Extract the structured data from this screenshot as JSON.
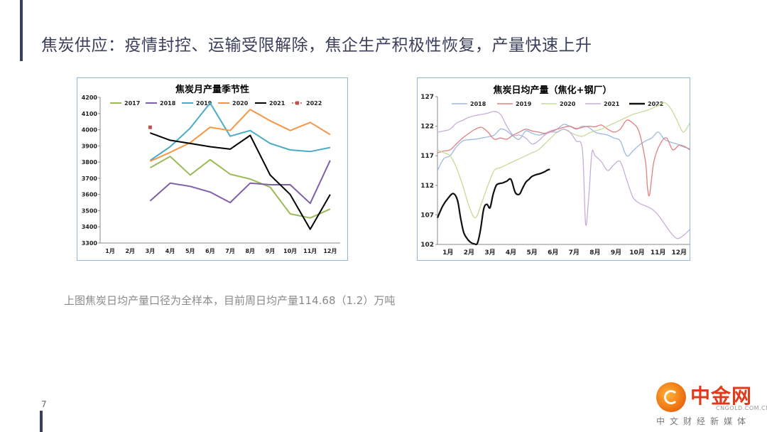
{
  "title": "焦炭供应：疫情封控、运输受限解除，焦企生产积极性恢复，产量快速上升",
  "caption": "上图焦炭日均产量口径为全样本，目前周日均产量114.68（1.2）万吨",
  "page_number": "7",
  "logo": {
    "brand": "中金网",
    "domain": "CNGOLD.COM.CN",
    "tagline": "中文财经新媒体"
  },
  "chart_data": [
    {
      "type": "line",
      "title": "焦炭月产量季节性",
      "categories": [
        "1月",
        "2月",
        "3月",
        "4月",
        "5月",
        "6月",
        "7月",
        "8月",
        "9月",
        "10月",
        "11月",
        "12月"
      ],
      "ylim": [
        3300,
        4200
      ],
      "yticks": [
        3300,
        3400,
        3500,
        3600,
        3700,
        3800,
        3900,
        4000,
        4100,
        4200
      ],
      "grid": false,
      "legend_position": "top",
      "series": [
        {
          "name": "2017",
          "color": "#9bbb59",
          "marker": "none",
          "values": [
            null,
            null,
            3765,
            3835,
            3720,
            3815,
            3725,
            3695,
            3645,
            3480,
            3455,
            3510
          ]
        },
        {
          "name": "2018",
          "color": "#7f5fa8",
          "marker": "none",
          "values": [
            null,
            null,
            3560,
            3670,
            3650,
            3615,
            3550,
            3670,
            3660,
            3660,
            3545,
            3810
          ]
        },
        {
          "name": "2019",
          "color": "#4bacc6",
          "marker": "none",
          "values": [
            null,
            null,
            3810,
            3895,
            4010,
            4165,
            3960,
            3995,
            3915,
            3875,
            3865,
            3890
          ]
        },
        {
          "name": "2020",
          "color": "#f79646",
          "marker": "none",
          "values": [
            null,
            null,
            3805,
            3860,
            3920,
            4015,
            3995,
            4125,
            4055,
            3995,
            4045,
            3970
          ]
        },
        {
          "name": "2021",
          "color": "#000000",
          "marker": "none",
          "values": [
            null,
            null,
            3980,
            3935,
            3915,
            3895,
            3880,
            3965,
            3720,
            3600,
            3385,
            3600
          ]
        },
        {
          "name": "2022",
          "color": "#c0504d",
          "marker": "square",
          "values": [
            null,
            null,
            4015,
            null,
            null,
            null,
            null,
            null,
            null,
            null,
            null,
            null
          ]
        }
      ]
    },
    {
      "type": "line",
      "title": "焦炭日均产量（焦化+钢厂）",
      "x_ticklabels": [
        "1月",
        "2月",
        "3月",
        "4月",
        "5月",
        "6月",
        "7月",
        "8月",
        "9月",
        "10月",
        "11月",
        "12月"
      ],
      "ylim": [
        102,
        127
      ],
      "yticks": [
        102,
        107,
        112,
        117,
        122,
        127
      ],
      "grid": false,
      "legend_position": "top",
      "series": [
        {
          "name": "2018",
          "color": "#9db9e0",
          "width": 1.3,
          "x": [
            0.0,
            0.3,
            0.6,
            0.9,
            1.2,
            1.5,
            1.8,
            2.1,
            2.4,
            2.7,
            3.0,
            3.3,
            3.6,
            3.9,
            4.2,
            4.5,
            4.8,
            5.1,
            5.4,
            5.7,
            6.0,
            6.3,
            6.6,
            6.9,
            7.2,
            7.5,
            7.8,
            8.1,
            8.4,
            8.7,
            9.0,
            9.3,
            9.6,
            9.9,
            10.2,
            10.5,
            10.8,
            11.1,
            11.4,
            11.7,
            12.0
          ],
          "y": [
            114.5,
            116.5,
            117.0,
            118.5,
            119.5,
            119.7,
            119.8,
            120.0,
            120.2,
            120.5,
            121.5,
            121.2,
            120.3,
            119.8,
            121.2,
            120.8,
            120.5,
            120.7,
            121.0,
            121.5,
            122.3,
            122.0,
            121.5,
            122.0,
            121.8,
            121.0,
            120.7,
            120.5,
            120.0,
            119.5,
            117.0,
            117.8,
            118.8,
            119.5,
            120.0,
            121.0,
            119.8,
            119.3,
            119.0,
            118.5,
            118.2
          ]
        },
        {
          "name": "2019",
          "color": "#e08080",
          "width": 1.3,
          "x": [
            0.0,
            0.3,
            0.6,
            0.9,
            1.2,
            1.5,
            1.8,
            2.1,
            2.4,
            2.7,
            3.0,
            3.3,
            3.6,
            3.9,
            4.2,
            4.5,
            4.8,
            5.1,
            5.4,
            5.7,
            6.0,
            6.3,
            6.6,
            6.9,
            7.2,
            7.5,
            7.8,
            8.1,
            8.4,
            8.7,
            9.0,
            9.3,
            9.6,
            9.9,
            10.0,
            10.1,
            10.3,
            10.6,
            10.9,
            11.2,
            11.5,
            11.8,
            12.0
          ],
          "y": [
            117.5,
            117.8,
            118.0,
            119.0,
            120.0,
            120.8,
            121.5,
            121.8,
            121.0,
            119.8,
            120.0,
            119.8,
            120.5,
            121.0,
            121.5,
            121.2,
            121.0,
            120.8,
            121.2,
            121.5,
            121.8,
            122.0,
            121.6,
            121.8,
            122.0,
            121.9,
            122.2,
            121.5,
            121.0,
            121.5,
            123.0,
            122.5,
            121.0,
            116.0,
            111.5,
            110.5,
            116.0,
            119.0,
            120.0,
            118.0,
            118.8,
            118.5,
            118.0
          ]
        },
        {
          "name": "2020",
          "color": "#c5dc98",
          "width": 1.3,
          "x": [
            0.0,
            0.3,
            0.6,
            0.9,
            1.2,
            1.5,
            1.8,
            2.1,
            2.4,
            2.7,
            3.0,
            3.3,
            3.6,
            3.9,
            4.2,
            4.5,
            4.8,
            5.1,
            5.4,
            5.7,
            6.0,
            6.3,
            6.6,
            6.9,
            7.2,
            7.5,
            7.8,
            8.1,
            8.4,
            8.7,
            9.0,
            9.3,
            9.6,
            9.9,
            10.2,
            10.5,
            10.8,
            11.1,
            11.4,
            11.7,
            12.0
          ],
          "y": [
            118.0,
            117.5,
            117.0,
            115.0,
            112.0,
            108.5,
            106.5,
            109.0,
            112.0,
            114.5,
            115.0,
            115.5,
            116.0,
            116.5,
            117.0,
            117.5,
            118.0,
            119.0,
            120.0,
            121.0,
            121.5,
            121.0,
            120.5,
            120.3,
            120.8,
            121.2,
            121.5,
            122.0,
            122.5,
            123.0,
            123.5,
            124.0,
            124.3,
            124.6,
            125.0,
            125.5,
            126.0,
            125.0,
            123.0,
            121.0,
            122.5
          ]
        },
        {
          "name": "2021",
          "color": "#c7aed9",
          "width": 1.3,
          "x": [
            0.0,
            0.3,
            0.6,
            0.9,
            1.2,
            1.5,
            1.8,
            2.1,
            2.4,
            2.7,
            3.0,
            3.3,
            3.6,
            3.9,
            4.2,
            4.5,
            4.8,
            5.1,
            5.4,
            5.7,
            6.0,
            6.3,
            6.6,
            6.9,
            7.05,
            7.2,
            7.35,
            7.5,
            7.8,
            8.1,
            8.4,
            8.7,
            9.0,
            9.3,
            9.6,
            9.9,
            10.2,
            10.5,
            10.8,
            11.1,
            11.4,
            11.7,
            12.0
          ],
          "y": [
            121.0,
            121.2,
            121.5,
            122.5,
            123.0,
            123.5,
            123.8,
            124.0,
            124.2,
            124.5,
            124.0,
            122.0,
            120.5,
            120.5,
            120.0,
            119.0,
            119.5,
            120.5,
            121.0,
            121.0,
            121.5,
            121.0,
            119.5,
            118.0,
            105.5,
            110.0,
            117.5,
            117.0,
            116.0,
            114.5,
            115.5,
            116.0,
            113.0,
            110.0,
            109.0,
            108.5,
            108.0,
            107.0,
            105.5,
            104.0,
            103.0,
            103.5,
            104.5
          ]
        },
        {
          "name": "2022",
          "color": "#111111",
          "width": 2.2,
          "x": [
            0.0,
            0.25,
            0.5,
            0.75,
            0.95,
            1.1,
            1.25,
            1.45,
            1.6,
            1.75,
            1.9,
            2.05,
            2.2,
            2.35,
            2.5,
            2.65,
            2.8,
            2.95,
            3.1,
            3.3,
            3.5,
            3.7,
            3.9,
            4.05,
            4.2,
            4.35,
            4.5,
            4.7,
            4.9,
            5.1,
            5.25,
            5.35
          ],
          "y": [
            106.5,
            108.5,
            109.8,
            110.6,
            109.5,
            106.5,
            104.0,
            102.8,
            102.3,
            102.1,
            102.2,
            104.5,
            108.0,
            108.8,
            108.2,
            110.5,
            112.0,
            112.3,
            112.4,
            112.7,
            113.0,
            110.8,
            110.5,
            111.5,
            112.5,
            113.0,
            113.5,
            113.8,
            114.0,
            114.3,
            114.6,
            114.7
          ]
        }
      ]
    }
  ]
}
